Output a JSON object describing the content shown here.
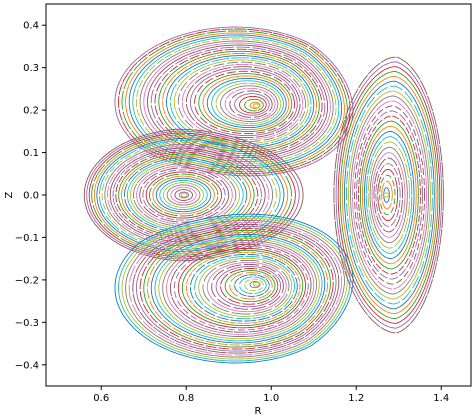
{
  "chart_data": {
    "type": "line",
    "title": "",
    "xlabel": "R",
    "ylabel": "Z",
    "xlim": [
      0.47,
      1.47
    ],
    "ylim": [
      -0.45,
      0.45
    ],
    "grid": false,
    "legend": "none",
    "xticks": [
      "0.6",
      "0.8",
      "1.0",
      "1.2",
      "1.4"
    ],
    "xtick_values": [
      0.6,
      0.8,
      1.0,
      1.2,
      1.4
    ],
    "yticks": [
      "0.4",
      "0.3",
      "0.2",
      "0.1",
      "0.0",
      "−0.1",
      "−0.2",
      "−0.3",
      "−0.4"
    ],
    "ytick_values": [
      0.4,
      0.3,
      0.2,
      0.1,
      0.0,
      -0.1,
      -0.2,
      -0.3,
      -0.4
    ],
    "line_colors": [
      "#1f77b4",
      "#ff7f0e",
      "#2ca02c",
      "#d62728",
      "#9467bd",
      "#8c564b",
      "#e377c2",
      "#7f7f7f",
      "#bcbd22",
      "#17becf"
    ],
    "islands": [
      {
        "name": "upper-lobe",
        "o_point": [
          0.965,
          0.21
        ],
        "outer_extent": {
          "left": 0.61,
          "right": 1.17,
          "top": 0.41,
          "bottom": 0.06
        },
        "rings": 34
      },
      {
        "name": "left-lobe",
        "o_point": [
          0.795,
          0.0
        ],
        "outer_extent": {
          "left": 0.53,
          "right": 1.03,
          "top": 0.155,
          "bottom": -0.155
        },
        "rings": 32
      },
      {
        "name": "lower-lobe",
        "o_point": [
          0.965,
          -0.21
        ],
        "outer_extent": {
          "left": 0.61,
          "right": 1.17,
          "top": -0.06,
          "bottom": -0.41
        },
        "rings": 34
      },
      {
        "name": "right-lobe",
        "o_point": [
          1.27,
          0.0
        ],
        "outer_extent": {
          "left": 1.17,
          "right": 1.42,
          "top": 0.325,
          "bottom": -0.325
        },
        "rings": 26
      }
    ]
  }
}
